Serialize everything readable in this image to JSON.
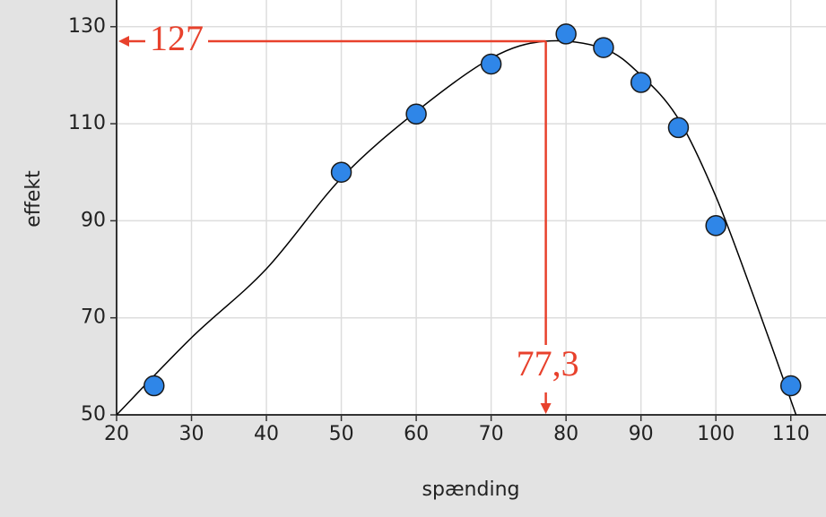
{
  "chart_data": {
    "type": "scatter",
    "x_label": "spænding",
    "y_label": "effekt",
    "x": [
      25,
      50,
      60,
      70,
      80,
      85,
      90,
      95,
      100,
      110
    ],
    "values": [
      56,
      100,
      112,
      122.3,
      128.5,
      125.7,
      118.5,
      109.2,
      89,
      56
    ],
    "color": "#2f86e8",
    "curve": {
      "x": [
        20,
        30,
        40,
        50,
        60,
        70,
        77.3,
        85,
        90,
        95,
        100,
        105,
        110.7
      ],
      "values": [
        50,
        65.9,
        80.1,
        98.8,
        112.5,
        123.5,
        127,
        125.5,
        120,
        111,
        95,
        74.6,
        50
      ],
      "color": "#000000"
    },
    "annotation": {
      "x": 77.3,
      "y": 127,
      "x_label": "77,3",
      "y_label": "127",
      "color": "#e8412c"
    },
    "xlim": [
      20,
      114.7
    ],
    "ylim": [
      50,
      135.5
    ],
    "xticks": [
      20,
      30,
      40,
      50,
      60,
      70,
      80,
      90,
      100,
      110
    ],
    "yticks": [
      50,
      70,
      90,
      110,
      130
    ],
    "grid": true
  }
}
